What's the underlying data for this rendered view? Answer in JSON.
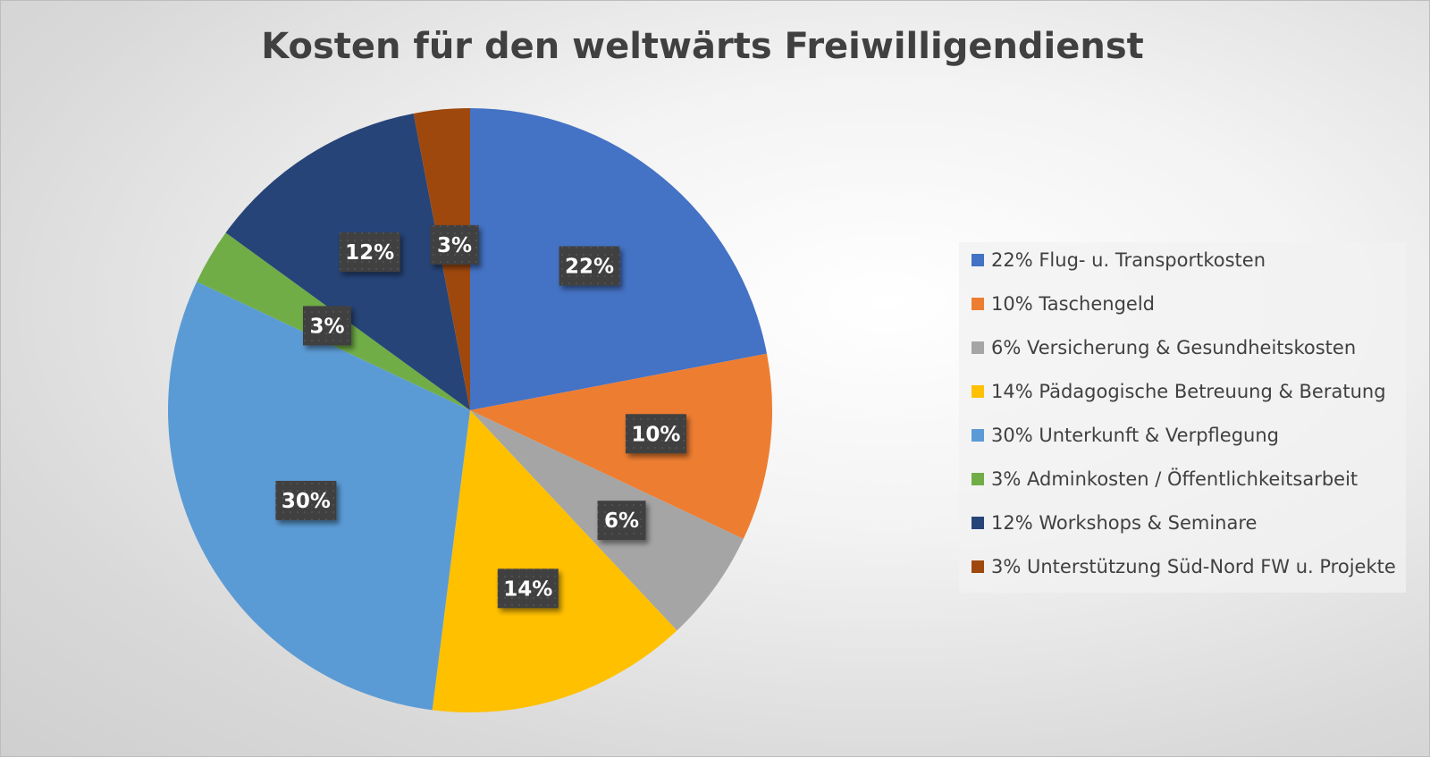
{
  "chart_data": {
    "type": "pie",
    "title": "Kosten für den weltwärts Freiwilligendienst",
    "start_angle": "top, clockwise",
    "legend_position": "right",
    "slices": [
      {
        "label": "22% Flug- u. Transportkosten",
        "value": 22,
        "data_label": "22%",
        "color": "#4472C4"
      },
      {
        "label": "10% Taschengeld",
        "value": 10,
        "data_label": "10%",
        "color": "#ED7D31"
      },
      {
        "label": "6% Versicherung & Gesundheitskosten",
        "value": 6,
        "data_label": "6%",
        "color": "#A5A5A5"
      },
      {
        "label": "14% Pädagogische Betreuung & Beratung",
        "value": 14,
        "data_label": "14%",
        "color": "#FFC000"
      },
      {
        "label": "30% Unterkunft & Verpflegung",
        "value": 30,
        "data_label": "30%",
        "color": "#5B9BD5"
      },
      {
        "label": "3% Adminkosten / Öffentlichkeitsarbeit",
        "value": 3,
        "data_label": "3%",
        "color": "#70AD47"
      },
      {
        "label": "12% Workshops & Seminare",
        "value": 12,
        "data_label": "12%",
        "color": "#264478"
      },
      {
        "label": "3% Unterstützung Süd-Nord FW u. Projekte",
        "value": 3,
        "data_label": "3%",
        "color": "#9E480E"
      }
    ]
  }
}
